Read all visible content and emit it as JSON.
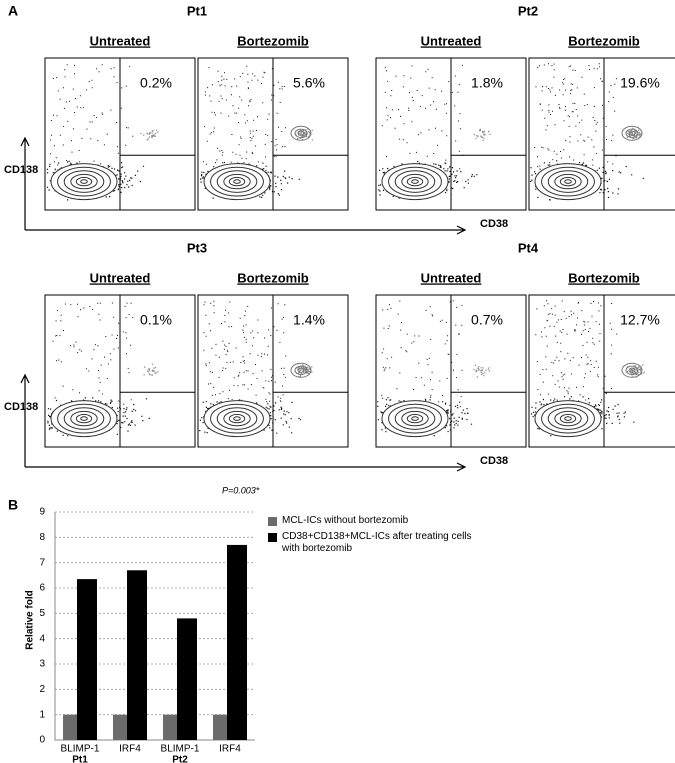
{
  "panel_a": {
    "label": "A",
    "y_axis": "CD138",
    "x_axis": "CD38",
    "patients": [
      {
        "name": "Pt1",
        "conditions": [
          {
            "label": "Untreated",
            "percent": "0.2%"
          },
          {
            "label": "Bortezomib",
            "percent": "5.6%"
          }
        ]
      },
      {
        "name": "Pt2",
        "conditions": [
          {
            "label": "Untreated",
            "percent": "1.8%"
          },
          {
            "label": "Bortezomib",
            "percent": "19.6%"
          }
        ]
      },
      {
        "name": "Pt3",
        "conditions": [
          {
            "label": "Untreated",
            "percent": "0.1%"
          },
          {
            "label": "Bortezomib",
            "percent": "1.4%"
          }
        ]
      },
      {
        "name": "Pt4",
        "conditions": [
          {
            "label": "Untreated",
            "percent": "0.7%"
          },
          {
            "label": "Bortezomib",
            "percent": "12.7%"
          }
        ]
      }
    ]
  },
  "chart_data": {
    "type": "bar",
    "panel_label": "B",
    "annotation": "P=0.003*",
    "ylabel": "Relative fold",
    "categories": [
      "BLIMP-1",
      "IRF4",
      "BLIMP-1",
      "IRF4"
    ],
    "groups": [
      "Pt1",
      "Pt2"
    ],
    "series": [
      {
        "name": "MCL-ICs without bortezomib",
        "color": "#6b6b6b",
        "values": [
          1,
          1,
          1,
          1
        ]
      },
      {
        "name": "CD38+CD138+MCL-ICs after treating cells with bortezomib",
        "color": "#000000",
        "values": [
          6.35,
          6.7,
          4.8,
          7.7
        ]
      }
    ],
    "ylim": [
      0,
      9
    ],
    "yticks": [
      0,
      1,
      2,
      3,
      4,
      5,
      6,
      7,
      8,
      9
    ],
    "grid": true
  }
}
